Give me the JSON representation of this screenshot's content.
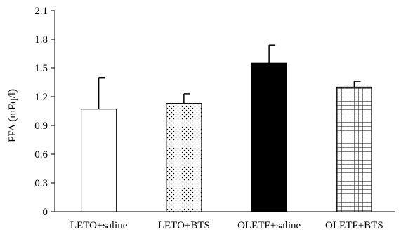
{
  "chart_data": {
    "type": "bar",
    "title": "",
    "xlabel": "",
    "ylabel": "FFA (mEq/l)",
    "ylim": [
      0,
      2.1
    ],
    "yticks": [
      "0",
      "0.3",
      "0.6",
      "0.9",
      "1.2",
      "1.5",
      "1.8",
      "2.1"
    ],
    "categories": [
      "LETO+saline",
      "LETO+BTS",
      "OLETF+saline",
      "OLETF+BTS"
    ],
    "values": [
      1.07,
      1.13,
      1.55,
      1.3
    ],
    "errors": [
      0.33,
      0.1,
      0.19,
      0.06
    ],
    "fills": [
      "white",
      "dotted",
      "black",
      "grid"
    ],
    "colors": {
      "edge": "#000000",
      "solid": "#000000",
      "background": "#ffffff"
    }
  }
}
